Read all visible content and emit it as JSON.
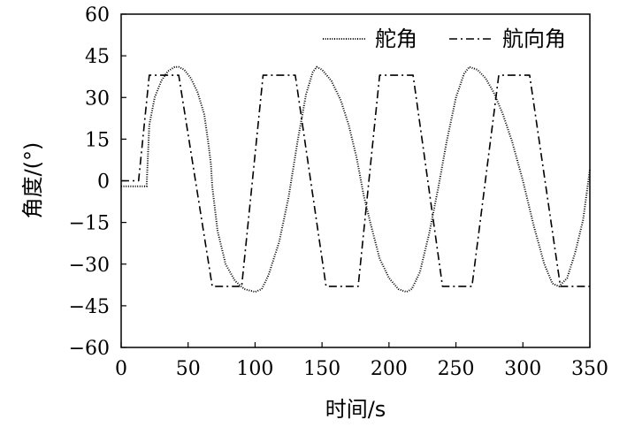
{
  "chart_data": {
    "type": "line",
    "xlabel": "时间/s",
    "ylabel": "角度/(°)",
    "xlim": [
      0,
      350
    ],
    "ylim": [
      -60,
      60
    ],
    "xticks": [
      0,
      50,
      100,
      150,
      200,
      250,
      300,
      350
    ],
    "yticks": [
      60,
      45,
      30,
      15,
      0,
      -15,
      -30,
      -45,
      -60
    ],
    "xtick_labels": [
      "0",
      "50",
      "100",
      "150",
      "200",
      "250",
      "300",
      "350"
    ],
    "ytick_labels": [
      "60",
      "45",
      "30",
      "15",
      "0",
      "−15",
      "−30",
      "−45",
      "−60"
    ],
    "legend_position": "top-right",
    "grid": false,
    "series": [
      {
        "name": "舵角",
        "style": "dotted",
        "color": "#000000",
        "x": [
          0,
          19,
          21,
          25,
          30,
          35,
          40,
          43,
          47,
          52,
          57,
          62,
          65,
          67,
          68,
          72,
          78,
          85,
          92,
          100,
          105,
          110,
          118,
          125,
          132,
          138,
          143,
          146,
          150,
          157,
          164,
          170,
          176,
          181,
          186,
          193,
          200,
          207,
          213,
          217,
          223,
          230,
          237,
          243,
          250,
          256,
          260,
          266,
          272,
          278,
          285,
          292,
          300,
          308,
          316,
          322,
          327,
          333,
          339,
          345,
          350
        ],
        "y": [
          -2,
          -2,
          20,
          30,
          36,
          39.5,
          41,
          41,
          40,
          37,
          32,
          24,
          14,
          6,
          -2,
          -18,
          -30,
          -36,
          -39,
          -40,
          -39,
          -34,
          -22,
          -6,
          15,
          31,
          39,
          41,
          40,
          36,
          29,
          20,
          8,
          -5,
          -15,
          -28,
          -35,
          -39,
          -40,
          -39,
          -33,
          -19,
          -2,
          14,
          30,
          38.5,
          41,
          40,
          37,
          32,
          24,
          14,
          0,
          -16,
          -30,
          -37,
          -38,
          -35,
          -26,
          -14,
          4
        ]
      },
      {
        "name": "航向角",
        "style": "dashdot",
        "color": "#000000",
        "x": [
          0,
          13,
          21,
          43,
          68,
          90,
          106,
          130,
          153,
          177,
          193,
          218,
          240,
          262,
          282,
          305,
          328,
          350
        ],
        "y": [
          0,
          0,
          38,
          38,
          -38,
          -38,
          38,
          38,
          -38,
          -38,
          38,
          38,
          -38,
          -38,
          38,
          38,
          -38,
          -38
        ]
      }
    ]
  }
}
